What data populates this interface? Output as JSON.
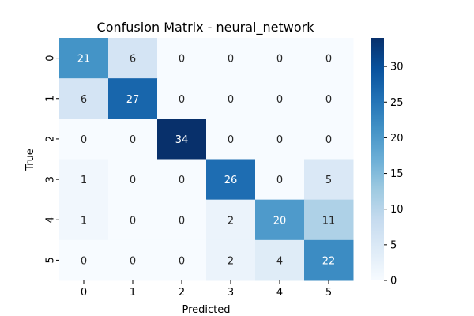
{
  "chart_data": {
    "type": "heatmap",
    "title": "Confusion Matrix - neural_network",
    "xlabel": "Predicted",
    "ylabel": "True",
    "x_categories": [
      "0",
      "1",
      "2",
      "3",
      "4",
      "5"
    ],
    "y_categories": [
      "0",
      "1",
      "2",
      "3",
      "4",
      "5"
    ],
    "matrix": [
      [
        21,
        6,
        0,
        0,
        0,
        0
      ],
      [
        6,
        27,
        0,
        0,
        0,
        0
      ],
      [
        0,
        0,
        34,
        0,
        0,
        0
      ],
      [
        1,
        0,
        0,
        26,
        0,
        5
      ],
      [
        1,
        0,
        0,
        2,
        20,
        11
      ],
      [
        0,
        0,
        0,
        2,
        4,
        22
      ]
    ],
    "colorbar": {
      "min": 0,
      "max": 34,
      "ticks": [
        0,
        5,
        10,
        15,
        20,
        25,
        30
      ]
    },
    "colormap": "Blues",
    "grid": false
  }
}
